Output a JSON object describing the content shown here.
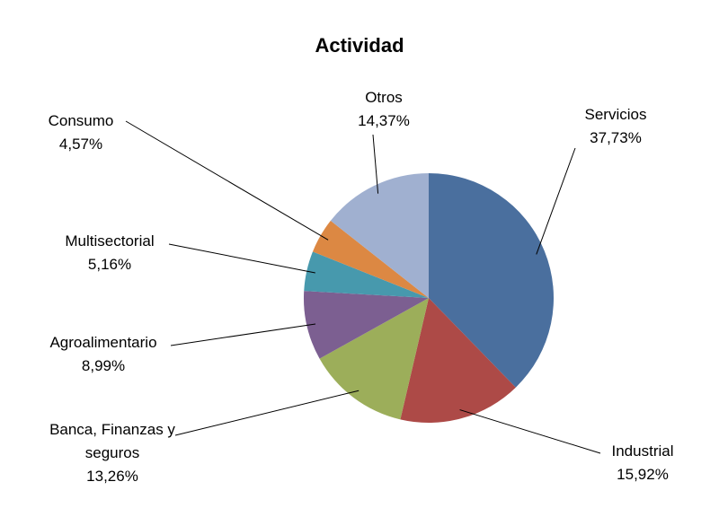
{
  "chart_data": {
    "type": "pie",
    "title": "Actividad",
    "categories": [
      "Servicios",
      "Industrial",
      "Banca, Finanzas y seguros",
      "Agroalimentario",
      "Multisectorial",
      "Consumo",
      "Otros"
    ],
    "values": [
      37.73,
      15.92,
      13.26,
      8.99,
      5.16,
      4.57,
      14.37
    ],
    "value_labels": [
      "37,73%",
      "15,92%",
      "13,26%",
      "8,99%",
      "5,16%",
      "4,57%",
      "14,37%"
    ],
    "colors": [
      "#4a6f9e",
      "#ad4a47",
      "#9cae5a",
      "#7c5f91",
      "#4799ad",
      "#dc8843",
      "#a0b0d0"
    ]
  }
}
